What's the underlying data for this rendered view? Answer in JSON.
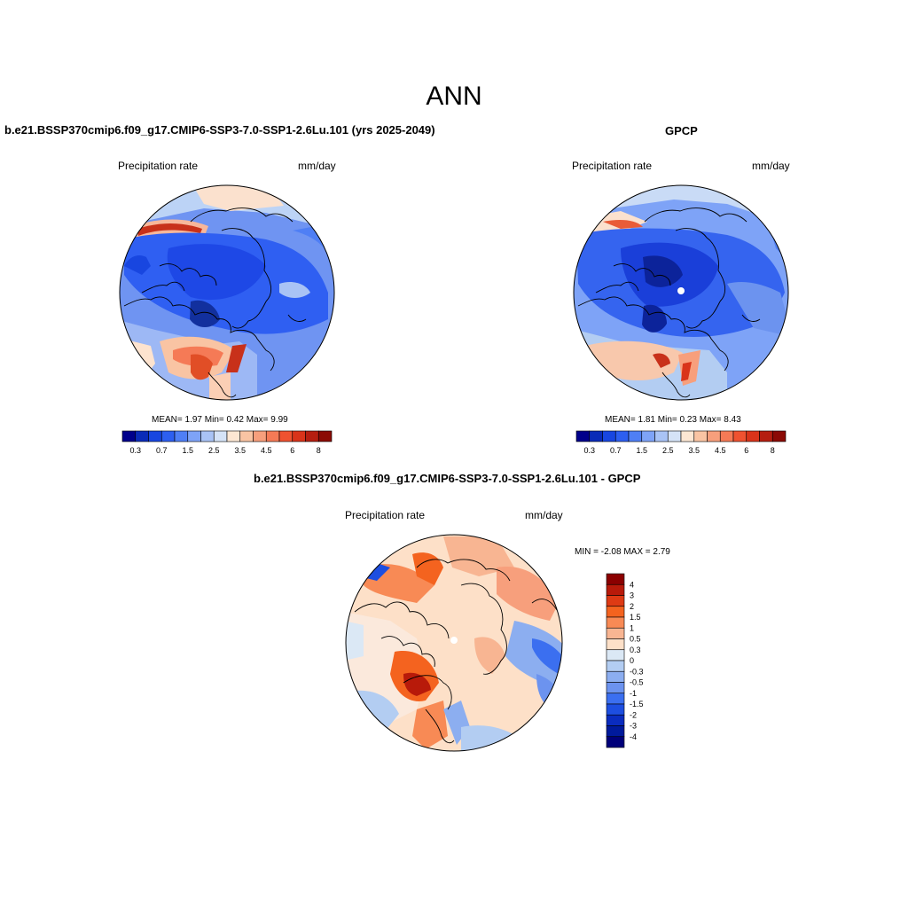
{
  "figure": {
    "title": "ANN"
  },
  "panels": [
    {
      "title": "b.e21.BSSP370cmip6.f09_g17.CMIP6-SSP3-7.0-SSP1-2.6Lu.101 (yrs 2025-2049)",
      "variable": "Precipitation rate",
      "units": "mm/day",
      "stats": {
        "mean_label": "MEAN=",
        "mean": "1.97",
        "min_label": "Min=",
        "min": "0.42",
        "max_label": "Max=",
        "max": "9.99"
      }
    },
    {
      "title": "GPCP",
      "variable": "Precipitation rate",
      "units": "mm/day",
      "stats": {
        "mean_label": "MEAN=",
        "mean": "1.81",
        "min_label": "Min=",
        "min": "0.23",
        "max_label": "Max=",
        "max": "8.43"
      }
    },
    {
      "title": "b.e21.BSSP370cmip6.f09_g17.CMIP6-SSP3-7.0-SSP1-2.6Lu.101 - GPCP",
      "variable": "Precipitation rate",
      "units": "mm/day",
      "stats": {
        "min_label": "MIN =",
        "min": "-2.08",
        "max_label": "MAX =",
        "max": "2.79"
      }
    }
  ],
  "colorbars": {
    "absolute": {
      "colors": [
        "#00008b",
        "#0a2bb8",
        "#1846e0",
        "#2d5ff0",
        "#4f7ff5",
        "#7ea3f7",
        "#a9c3f5",
        "#d5e3f7",
        "#fde7d3",
        "#f9c4a3",
        "#f79f7c",
        "#f57a56",
        "#ef5230",
        "#d9341a",
        "#b51e10",
        "#8b0a05"
      ],
      "labels": [
        "0.3",
        "0.7",
        "1.5",
        "2.5",
        "3.5",
        "4.5",
        "6",
        "8"
      ]
    },
    "difference": {
      "colors": [
        "#8b0000",
        "#b81a0a",
        "#de3a14",
        "#f4631f",
        "#f88a55",
        "#f8b592",
        "#fde0c8",
        "#dbe8f5",
        "#b3cdf2",
        "#8caef0",
        "#6c93ef",
        "#3b6ff0",
        "#1d4ee0",
        "#0a2cbf",
        "#001a9c",
        "#00007a"
      ],
      "labels": [
        "4",
        "3",
        "2",
        "1.5",
        "1",
        "0.5",
        "0.3",
        "0",
        "-0.3",
        "-0.5",
        "-1",
        "-1.5",
        "-2",
        "-3",
        "-4"
      ]
    }
  }
}
